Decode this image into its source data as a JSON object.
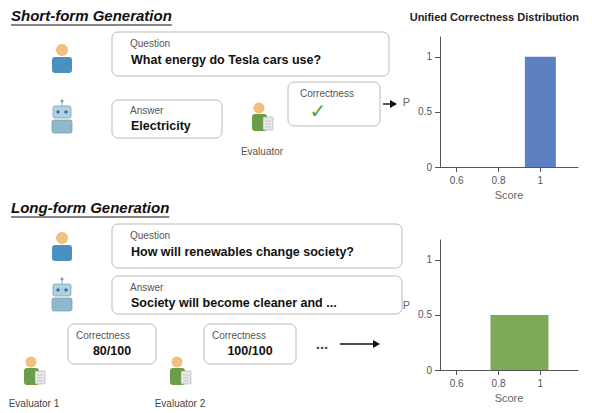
{
  "chart_data": [
    {
      "type": "bar",
      "title": "Unified Correctness Distribution",
      "x": [
        1.0
      ],
      "values": [
        1.0
      ],
      "color": "#5B7FC0",
      "xlabel": "Score",
      "ylabel": "P",
      "xlim": [
        0.52,
        1.18
      ],
      "ylim": [
        0,
        1.18
      ],
      "xticks": [
        0.6,
        0.8,
        1
      ],
      "yticks": [
        0,
        0.5,
        1
      ],
      "grid": false,
      "annotations": [
        "Short-form Generation",
        "Question",
        "What energy do Tesla cars use?",
        "Answer",
        "Electricity",
        "Correctness",
        "✓",
        "Evaluator"
      ]
    },
    {
      "type": "bar",
      "x": [
        0.9
      ],
      "values": [
        0.5
      ],
      "color": "#7EAA57",
      "xlabel": "Score",
      "ylabel": "P",
      "xlim": [
        0.52,
        1.18
      ],
      "ylim": [
        0,
        1.18
      ],
      "xticks": [
        0.6,
        0.8,
        1
      ],
      "yticks": [
        0,
        0.5,
        1
      ],
      "grid": false,
      "annotations": [
        "Long-form Generation",
        "Question",
        "How will renewables change society?",
        "Answer",
        "Society will become cleaner and ...",
        "Correctness",
        "80/100",
        "Correctness",
        "100/100",
        "...",
        "Evaluator 1",
        "Evaluator 2"
      ]
    }
  ]
}
